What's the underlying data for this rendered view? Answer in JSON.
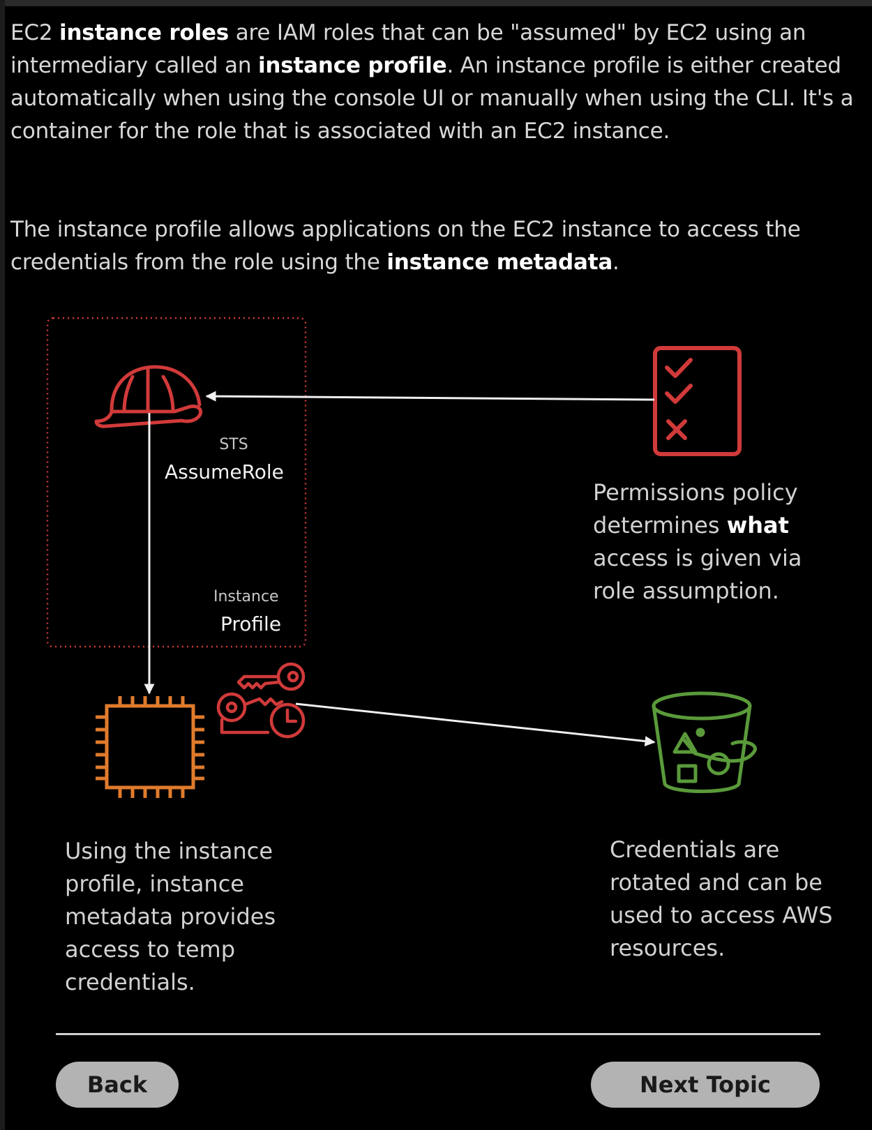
{
  "intro": {
    "p1": {
      "s1": "EC2 ",
      "b1": "instance roles",
      "s2": " are IAM roles that can be \"assumed\" by EC2 using an intermediary called an ",
      "b2": "instance profile",
      "s3": ". An instance profile is either created automatically when using the console UI or manually when using the CLI. It's a container for the role that is associated with an EC2 instance."
    },
    "p2": {
      "s1": "The instance profile allows applications on the EC2 instance to access the credentials from the role using the ",
      "b1": "instance metadata",
      "s2": "."
    }
  },
  "diagram": {
    "role_label_top": "STS",
    "role_label_bottom": "AssumeRole",
    "profile_label_top": "Instance",
    "profile_label_bottom": "Profile",
    "policy_caption": {
      "s1": "Permissions policy determines ",
      "b1": "what",
      "s2": " access is given via role assumption."
    },
    "metadata_caption": "Using the instance profile, instance metadata provides access to temp credentials.",
    "credentials_caption": "Credentials are rotated and can be used to access AWS resources.",
    "icons": [
      "helmet-role-icon",
      "checklist-policy-icon",
      "ec2-chip-icon",
      "keys-clock-icon",
      "s3-bucket-icon"
    ],
    "colors": {
      "role_red": "#d13a3a",
      "ec2_orange": "#e07b2c",
      "s3_green": "#5a9a3a",
      "arrow_white": "#f0f0f0"
    }
  },
  "nav": {
    "back_label": "Back",
    "next_label": "Next Topic"
  }
}
